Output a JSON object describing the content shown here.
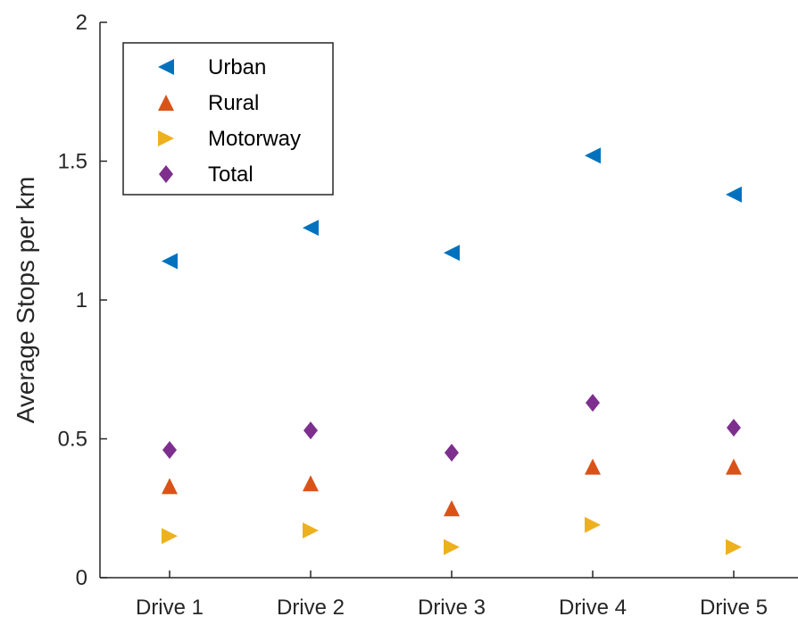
{
  "chart_data": {
    "type": "scatter",
    "categories": [
      "Drive 1",
      "Drive 2",
      "Drive 3",
      "Drive 4",
      "Drive 5"
    ],
    "ylabel": "Average Stops per km",
    "xlabel": "",
    "ylim": [
      0,
      2
    ],
    "yticks": [
      "0",
      "0.5",
      "1",
      "1.5",
      "2"
    ],
    "grid": false,
    "legend_position": "top-left",
    "series": [
      {
        "name": "Urban",
        "marker": "triangle-left",
        "color": "#0072BD",
        "values": [
          1.14,
          1.26,
          1.17,
          1.52,
          1.38
        ]
      },
      {
        "name": "Rural",
        "marker": "triangle-up",
        "color": "#D95319",
        "values": [
          0.33,
          0.34,
          0.25,
          0.4,
          0.4
        ]
      },
      {
        "name": "Motorway",
        "marker": "triangle-right",
        "color": "#EDB120",
        "values": [
          0.15,
          0.17,
          0.11,
          0.19,
          0.11
        ]
      },
      {
        "name": "Total",
        "marker": "diamond",
        "color": "#7E2F8E",
        "values": [
          0.46,
          0.53,
          0.45,
          0.63,
          0.54
        ]
      }
    ]
  }
}
